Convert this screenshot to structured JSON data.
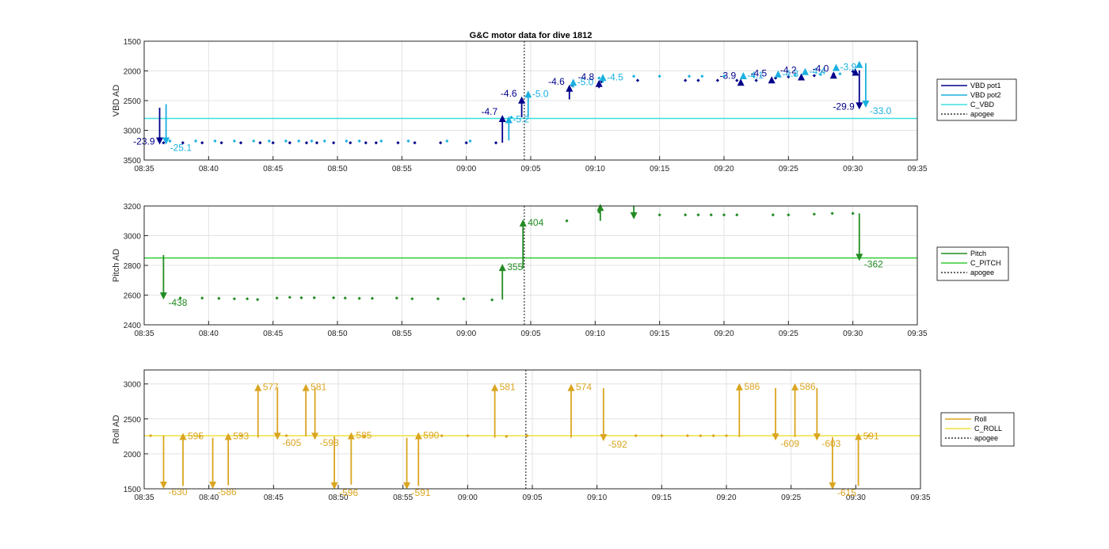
{
  "title": "G&C motor data for dive 1812",
  "colors": {
    "vbd1": "#00008b",
    "vbd2": "#1ab0e0",
    "c_vbd": "#3ee0e0",
    "pitch": "#228b22",
    "c_pitch": "#33cc33",
    "roll": "#daa520",
    "c_roll": "#f0e040",
    "apogee": "#333333",
    "grid": "#e3e3e3",
    "axis": "#262626"
  },
  "chart_data": [
    {
      "type": "scatter",
      "name": "vbd",
      "ylabel": "VBD AD",
      "ylim": [
        1500,
        3500
      ],
      "y_reversed": true,
      "yticks": [
        1500,
        2000,
        2500,
        3000,
        3500
      ],
      "xlim": [
        "08:35",
        "09:35"
      ],
      "xticks": [
        "08:35",
        "08:40",
        "08:45",
        "08:50",
        "08:55",
        "09:00",
        "09:05",
        "09:10",
        "09:15",
        "09:20",
        "09:25",
        "09:30",
        "09:35"
      ],
      "grid": true,
      "legend_position": "outside-right",
      "legend": [
        "VBD pot1",
        "VBD pot2",
        "C_VBD",
        "apogee"
      ],
      "apogee": "09:04.5",
      "hlines": [
        {
          "name": "C_VBD",
          "y": 2800
        }
      ],
      "series": [
        {
          "name": "VBD pot1",
          "points": [
            [
              "08:36.5",
              3210
            ],
            [
              "08:38.0",
              3210
            ],
            [
              "08:39.5",
              3210
            ],
            [
              "08:41.0",
              3210
            ],
            [
              "08:42.5",
              3210
            ],
            [
              "08:44.0",
              3210
            ],
            [
              "08:45.0",
              3210
            ],
            [
              "08:46.3",
              3210
            ],
            [
              "08:47.6",
              3210
            ],
            [
              "08:48.4",
              3210
            ],
            [
              "08:49.7",
              3210
            ],
            [
              "08:51.0",
              3210
            ],
            [
              "08:52.2",
              3210
            ],
            [
              "08:53.0",
              3210
            ],
            [
              "08:54.7",
              3210
            ],
            [
              "08:56.0",
              3210
            ],
            [
              "08:58.0",
              3210
            ],
            [
              "09:00.0",
              3210
            ],
            [
              "09:02.3",
              3210
            ],
            [
              "09:08.2",
              2240
            ],
            [
              "09:10.5",
              2180
            ],
            [
              "09:13.3",
              2160
            ],
            [
              "09:17.0",
              2160
            ],
            [
              "09:18.0",
              2160
            ],
            [
              "09:19.5",
              2160
            ],
            [
              "09:21.0",
              2160
            ],
            [
              "09:22.5",
              2160
            ],
            [
              "09:24.0",
              2120
            ],
            [
              "09:25.0",
              2100
            ],
            [
              "09:27.0",
              2080
            ],
            [
              "09:28.5",
              2050
            ],
            [
              "09:30.0",
              2010
            ]
          ]
        },
        {
          "name": "VBD pot2",
          "points": [
            [
              "08:37.0",
              3180
            ],
            [
              "08:39.0",
              3180
            ],
            [
              "08:40.5",
              3180
            ],
            [
              "08:42.0",
              3180
            ],
            [
              "08:43.5",
              3180
            ],
            [
              "08:44.7",
              3180
            ],
            [
              "08:46.0",
              3180
            ],
            [
              "08:47.0",
              3180
            ],
            [
              "08:48.0",
              3180
            ],
            [
              "08:49.0",
              3180
            ],
            [
              "08:50.7",
              3180
            ],
            [
              "08:51.7",
              3180
            ],
            [
              "08:53.4",
              3180
            ],
            [
              "08:55.5",
              3180
            ],
            [
              "08:58.5",
              3180
            ],
            [
              "09:00.3",
              3180
            ],
            [
              "09:03.5",
              2780
            ],
            [
              "09:10.3",
              2120
            ],
            [
              "09:13.0",
              2090
            ],
            [
              "09:15.0",
              2090
            ],
            [
              "09:17.3",
              2090
            ],
            [
              "09:18.3",
              2090
            ],
            [
              "09:20.0",
              2090
            ],
            [
              "09:22.3",
              2090
            ],
            [
              "09:25.5",
              2070
            ],
            [
              "09:27.5",
              2060
            ],
            [
              "09:29.0",
              2050
            ]
          ]
        }
      ],
      "events": [
        {
          "series": "VBD pot1",
          "x": "08:36.2",
          "from": 2620,
          "to": 3240,
          "label": "-23.9"
        },
        {
          "series": "VBD pot2",
          "x": "08:36.7",
          "from": 2560,
          "to": 3240,
          "label": "-25.1"
        },
        {
          "series": "VBD pot1",
          "x": "09:02.8",
          "from": 3210,
          "to": 2740,
          "label": "-4.7"
        },
        {
          "series": "VBD pot2",
          "x": "09:03.3",
          "from": 3170,
          "to": 2760,
          "label": "-5.2"
        },
        {
          "series": "VBD pot1",
          "x": "09:04.3",
          "from": 2780,
          "to": 2430,
          "label": "-4.6"
        },
        {
          "series": "VBD pot2",
          "x": "09:04.8",
          "from": 2770,
          "to": 2330,
          "label": "-5.0"
        },
        {
          "series": "VBD pot1",
          "x": "09:08.0",
          "from": 2480,
          "to": 2230,
          "label": "-4.6"
        },
        {
          "series": "VBD pot2",
          "x": "09:08.3",
          "from": 2280,
          "to": 2130,
          "label": "-5.0"
        },
        {
          "series": "VBD pot1",
          "x": "09:10.3",
          "from": 2290,
          "to": 2150,
          "label": "-4.8"
        },
        {
          "series": "VBD pot2",
          "x": "09:10.6",
          "from": 2200,
          "to": 2050,
          "label": "-4.5"
        },
        {
          "series": "VBD pot1",
          "x": "09:21.3",
          "from": 2210,
          "to": 2130,
          "label": "-3.9"
        },
        {
          "series": "VBD pot2",
          "x": "09:21.5",
          "from": 2110,
          "to": 2020,
          "label": "-4.1"
        },
        {
          "series": "VBD pot1",
          "x": "09:23.7",
          "from": 2170,
          "to": 2090,
          "label": "-4.5"
        },
        {
          "series": "VBD pot2",
          "x": "09:24.2",
          "from": 2080,
          "to": 1990,
          "label": "-4.3"
        },
        {
          "series": "VBD pot1",
          "x": "09:26.0",
          "from": 2130,
          "to": 2040,
          "label": "-4.2"
        },
        {
          "series": "VBD pot2",
          "x": "09:26.3",
          "from": 2030,
          "to": 1950,
          "label": "-4.4"
        },
        {
          "series": "VBD pot1",
          "x": "09:28.5",
          "from": 2100,
          "to": 2010,
          "label": "-4.0"
        },
        {
          "series": "VBD pot2",
          "x": "09:28.7",
          "from": 1990,
          "to": 1880,
          "label": "-3.9"
        },
        {
          "series": "VBD pot1",
          "x": "09:30.2",
          "from": 2050,
          "to": 1960,
          "label": ""
        },
        {
          "series": "VBD pot2",
          "x": "09:30.5",
          "from": 1930,
          "to": 1830,
          "label": ""
        },
        {
          "series": "VBD pot1",
          "x": "09:30.5",
          "from": 1990,
          "to": 2650,
          "label": "-29.9"
        },
        {
          "series": "VBD pot2",
          "x": "09:31.0",
          "from": 1870,
          "to": 2620,
          "label": "-33.0"
        }
      ]
    },
    {
      "type": "scatter",
      "name": "pitch",
      "ylabel": "Pitch AD",
      "ylim": [
        2400,
        3200
      ],
      "yticks": [
        2400,
        2600,
        2800,
        3000,
        3200
      ],
      "xlim": [
        "08:35",
        "09:35"
      ],
      "xticks": [
        "08:35",
        "08:40",
        "08:45",
        "08:50",
        "08:55",
        "09:00",
        "09:05",
        "09:10",
        "09:15",
        "09:20",
        "09:25",
        "09:30",
        "09:35"
      ],
      "grid": true,
      "legend_position": "outside-right",
      "legend": [
        "Pitch",
        "C_PITCH",
        "apogee"
      ],
      "apogee": "09:04.5",
      "hlines": [
        {
          "name": "C_PITCH",
          "y": 2850
        }
      ],
      "series": [
        {
          "name": "Pitch",
          "points": [
            [
              "08:37.8",
              2580
            ],
            [
              "08:39.5",
              2580
            ],
            [
              "08:40.8",
              2578
            ],
            [
              "08:42.0",
              2575
            ],
            [
              "08:43.0",
              2575
            ],
            [
              "08:43.8",
              2570
            ],
            [
              "08:45.3",
              2580
            ],
            [
              "08:46.3",
              2585
            ],
            [
              "08:47.2",
              2582
            ],
            [
              "08:48.2",
              2582
            ],
            [
              "08:49.7",
              2582
            ],
            [
              "08:50.6",
              2580
            ],
            [
              "08:51.7",
              2578
            ],
            [
              "08:52.7",
              2578
            ],
            [
              "08:54.6",
              2580
            ],
            [
              "08:55.8",
              2575
            ],
            [
              "08:57.8",
              2575
            ],
            [
              "08:59.8",
              2575
            ],
            [
              "09:02.0",
              2568
            ],
            [
              "09:07.8",
              3100
            ],
            [
              "09:10.3",
              3160
            ],
            [
              "09:13.0",
              3140
            ],
            [
              "09:15.0",
              3140
            ],
            [
              "09:17.0",
              3140
            ],
            [
              "09:18.0",
              3140
            ],
            [
              "09:19.0",
              3140
            ],
            [
              "09:20.0",
              3140
            ],
            [
              "09:21.0",
              3140
            ],
            [
              "09:23.8",
              3140
            ],
            [
              "09:25.0",
              3140
            ],
            [
              "09:27.0",
              3145
            ],
            [
              "09:28.4",
              3150
            ],
            [
              "09:30.0",
              3150
            ]
          ]
        }
      ],
      "events": [
        {
          "x": "08:36.5",
          "from": 2870,
          "to": 2570,
          "label": "-438"
        },
        {
          "x": "09:02.8",
          "from": 2570,
          "to": 2810,
          "label": "355"
        },
        {
          "x": "09:04.4",
          "from": 2780,
          "to": 3110,
          "label": "404"
        },
        {
          "x": "09:10.4",
          "from": 3100,
          "to": 3215,
          "label": ""
        },
        {
          "x": "09:13.0",
          "from": 3200,
          "to": 3110,
          "label": ""
        },
        {
          "x": "09:30.5",
          "from": 3150,
          "to": 2830,
          "label": "-362"
        }
      ]
    },
    {
      "type": "scatter",
      "name": "roll",
      "ylabel": "Roll AD",
      "ylim": [
        1500,
        3200
      ],
      "yticks": [
        1500,
        2000,
        2500,
        3000
      ],
      "xlim": [
        "08:35",
        "09:35"
      ],
      "xticks": [
        "08:35",
        "08:40",
        "08:45",
        "08:50",
        "08:55",
        "09:00",
        "09:05",
        "09:10",
        "09:15",
        "09:20",
        "09:25",
        "09:30",
        "09:35"
      ],
      "grid": true,
      "legend_position": "outside-right",
      "legend": [
        "Roll",
        "C_ROLL",
        "apogee"
      ],
      "apogee": "09:04.5",
      "hlines": [
        {
          "name": "C_ROLL",
          "y": 2260
        }
      ],
      "series": [
        {
          "name": "Roll",
          "points": [
            [
              "08:35.5",
              2260
            ],
            [
              "08:39.3",
              2250
            ],
            [
              "08:42.5",
              2260
            ],
            [
              "08:46.0",
              2260
            ],
            [
              "08:52.0",
              2250
            ],
            [
              "08:58.0",
              2260
            ],
            [
              "09:00.0",
              2260
            ],
            [
              "09:03.0",
              2250
            ],
            [
              "09:04.6",
              2260
            ],
            [
              "09:13.0",
              2260
            ],
            [
              "09:15.0",
              2260
            ],
            [
              "09:17.0",
              2260
            ],
            [
              "09:18.0",
              2260
            ],
            [
              "09:19.0",
              2260
            ],
            [
              "09:20.0",
              2260
            ],
            [
              "09:31.0",
              2260
            ]
          ]
        }
      ],
      "events": [
        {
          "x": "08:36.5",
          "from": 2260,
          "to": 1500,
          "label": "-630"
        },
        {
          "x": "08:38.0",
          "from": 1540,
          "to": 2300,
          "label": "595"
        },
        {
          "x": "08:40.3",
          "from": 2230,
          "to": 1500,
          "label": "-586"
        },
        {
          "x": "08:41.5",
          "from": 1550,
          "to": 2300,
          "label": "593"
        },
        {
          "x": "08:43.8",
          "from": 2230,
          "to": 3000,
          "label": "577"
        },
        {
          "x": "08:45.3",
          "from": 2950,
          "to": 2200,
          "label": "-605"
        },
        {
          "x": "08:47.5",
          "from": 2250,
          "to": 3000,
          "label": "581"
        },
        {
          "x": "08:48.2",
          "from": 2950,
          "to": 2200,
          "label": "-598"
        },
        {
          "x": "08:49.7",
          "from": 2250,
          "to": 1490,
          "label": "-596"
        },
        {
          "x": "08:51.0",
          "from": 1560,
          "to": 2310,
          "label": "585"
        },
        {
          "x": "08:55.3",
          "from": 2230,
          "to": 1490,
          "label": "-591"
        },
        {
          "x": "08:56.2",
          "from": 1540,
          "to": 2310,
          "label": "590"
        },
        {
          "x": "09:02.1",
          "from": 2230,
          "to": 3000,
          "label": "581"
        },
        {
          "x": "09:08.0",
          "from": 2230,
          "to": 3000,
          "label": "574"
        },
        {
          "x": "09:10.5",
          "from": 2940,
          "to": 2180,
          "label": "-592"
        },
        {
          "x": "09:21.0",
          "from": 2240,
          "to": 3010,
          "label": "586"
        },
        {
          "x": "09:23.8",
          "from": 2940,
          "to": 2190,
          "label": "-609"
        },
        {
          "x": "09:25.3",
          "from": 2240,
          "to": 3010,
          "label": "586"
        },
        {
          "x": "09:27.0",
          "from": 2940,
          "to": 2190,
          "label": "-603"
        },
        {
          "x": "09:28.2",
          "from": 2240,
          "to": 1490,
          "label": "-615"
        },
        {
          "x": "09:30.2",
          "from": 1540,
          "to": 2300,
          "label": "591"
        }
      ]
    }
  ]
}
